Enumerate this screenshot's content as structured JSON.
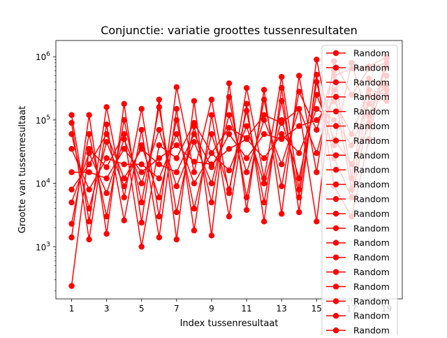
{
  "chart_data": {
    "type": "line",
    "title": "Conjunctie: variatie groottes tussenresultaten",
    "xlabel": "Index tussenresultaat",
    "ylabel": "Grootte van tussenresultaat",
    "x": [
      1,
      2,
      3,
      4,
      5,
      6,
      7,
      8,
      9,
      10,
      11,
      12,
      13,
      14,
      15,
      16,
      17,
      18,
      19
    ],
    "xticks": [
      1,
      3,
      5,
      7,
      9,
      11,
      13,
      15,
      17,
      19
    ],
    "y_scale": "log",
    "ylim": [
      150,
      1800000
    ],
    "yticks": [
      {
        "value": 1000,
        "base": "10",
        "exp": "3"
      },
      {
        "value": 10000,
        "base": "10",
        "exp": "4"
      },
      {
        "value": 100000,
        "base": "10",
        "exp": "5"
      },
      {
        "value": 1000000,
        "base": "10",
        "exp": "6"
      }
    ],
    "line_color": "#ff0000",
    "marker": "circle",
    "legend": {
      "location": "top-right, overflowing below the axes",
      "entries": [
        "Random",
        "Random",
        "Random",
        "Random",
        "Random",
        "Random",
        "Random",
        "Random",
        "Random",
        "Random",
        "Random",
        "Random",
        "Random",
        "Random",
        "Random",
        "Random",
        "Random",
        "Random",
        "Random",
        "Random"
      ]
    },
    "series": [
      {
        "values": [
          240,
          35000,
          18000,
          60000,
          1000,
          40000,
          25000,
          90000,
          30000,
          75000,
          52000,
          120000,
          90000,
          150000,
          2500,
          500000,
          650000,
          700000,
          1000000
        ]
      },
      {
        "values": [
          120000,
          2500,
          160000,
          6000,
          150000,
          3000,
          330000,
          15000,
          210000,
          7000,
          320000,
          12000,
          480000,
          8000,
          900000,
          40000,
          800000,
          90000,
          950000
        ]
      },
      {
        "values": [
          1400,
          120000,
          1600,
          180000,
          2400,
          210000,
          1300,
          200000,
          1500,
          380000,
          3800,
          300000,
          3300,
          500000,
          15000,
          850000,
          250000,
          650000,
          800000
        ]
      },
      {
        "values": [
          90000,
          1300,
          85000,
          2600,
          70000,
          1400,
          150000,
          1800,
          120000,
          3000,
          180000,
          2500,
          320000,
          3500,
          520000,
          9000,
          3000,
          50000,
          1000000
        ]
      },
      {
        "values": [
          2300,
          60000,
          3000,
          100000,
          5000,
          160000,
          3500,
          80000,
          5000,
          230000,
          6000,
          210000,
          9000,
          280000,
          70000,
          600000,
          12000,
          450000,
          300000
        ]
      },
      {
        "values": [
          60000,
          4000,
          45000,
          9000,
          40000,
          6000,
          100000,
          4000,
          60000,
          8000,
          140000,
          5000,
          200000,
          6000,
          400000,
          25000,
          6000,
          120000,
          700000
        ]
      },
      {
        "values": [
          5000,
          30000,
          7000,
          50000,
          10000,
          70000,
          9000,
          45000,
          10000,
          120000,
          15000,
          100000,
          20000,
          150000,
          30000,
          300000,
          8000,
          250000,
          200000
        ]
      },
      {
        "values": [
          35000,
          8000,
          25000,
          20000,
          20000,
          12000,
          60000,
          10000,
          30000,
          16000,
          80000,
          10000,
          100000,
          12000,
          250000,
          50000,
          20000,
          80000,
          500000
        ]
      },
      {
        "values": [
          15000,
          15000,
          12000,
          35000,
          15000,
          25000,
          40000,
          22000,
          20000,
          35000,
          50000,
          25000,
          60000,
          30000,
          150000,
          100000,
          40000,
          180000,
          350000
        ]
      },
      {
        "values": [
          8000,
          20000,
          60000,
          12000,
          35000,
          20000,
          15000,
          60000,
          18000,
          60000,
          25000,
          60000,
          50000,
          80000,
          100000,
          200000,
          60000,
          300000,
          250000
        ]
      }
    ]
  }
}
